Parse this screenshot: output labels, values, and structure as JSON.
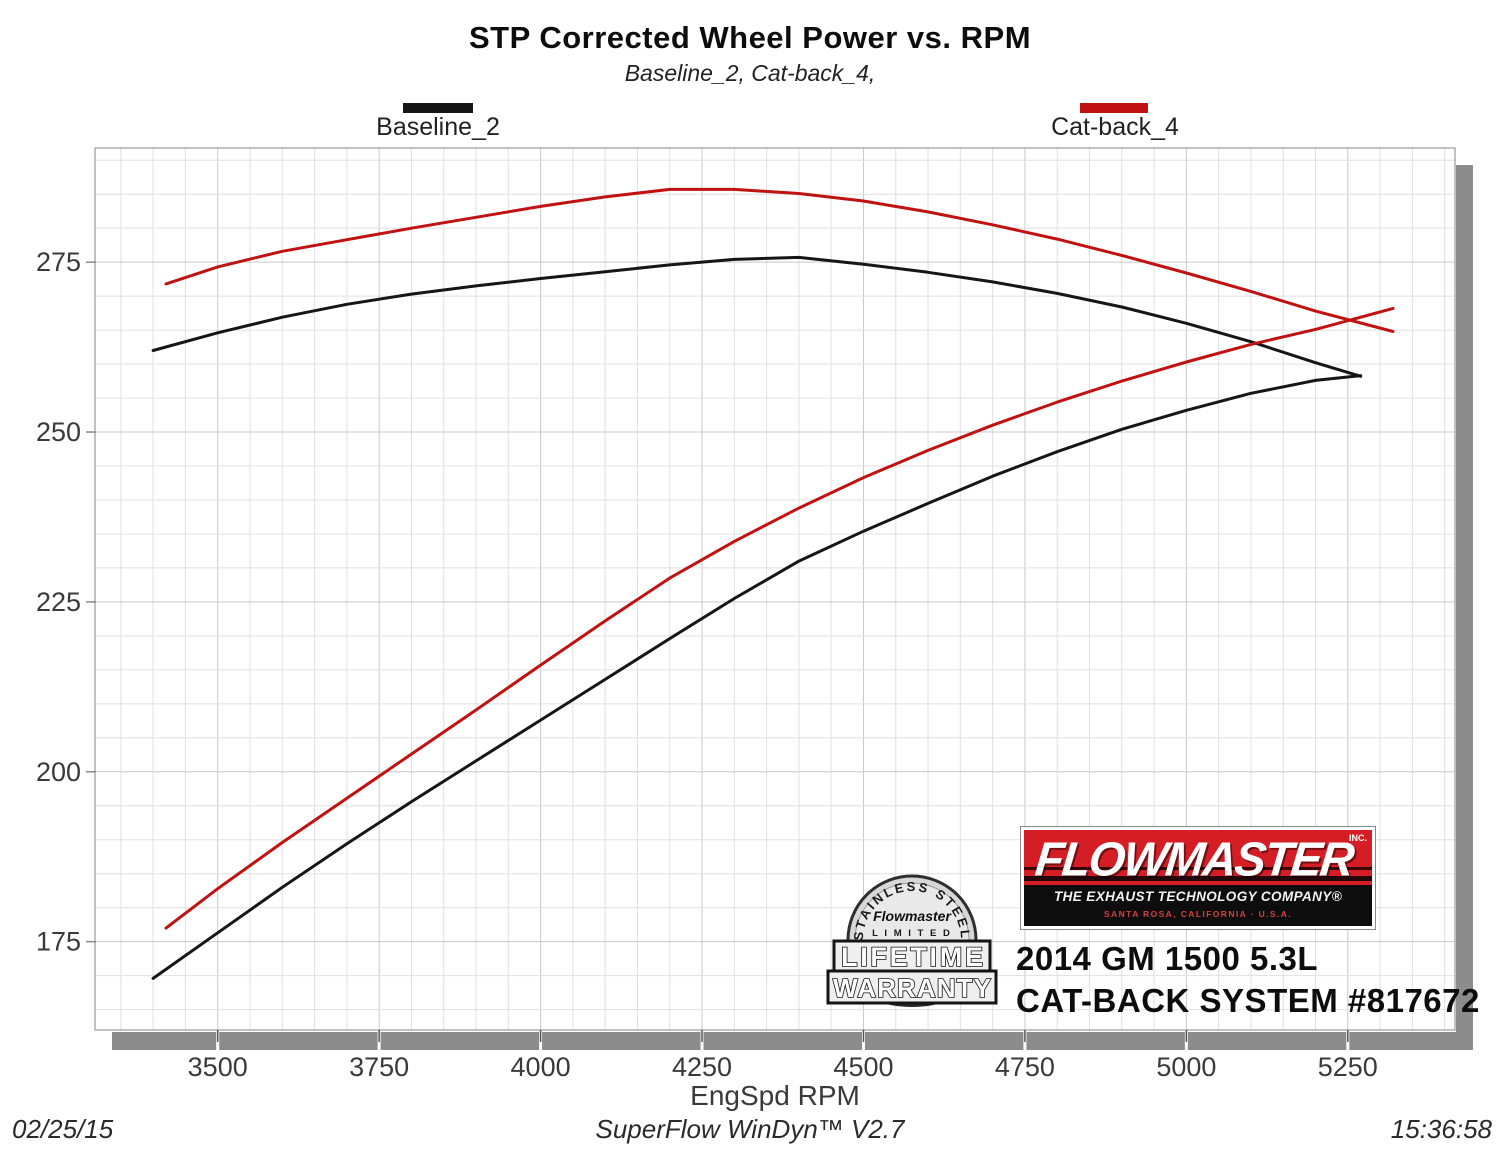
{
  "page": {
    "title": "STP Corrected Wheel Power vs. RPM",
    "subtitle": "Baseline_2, Cat-back_4,"
  },
  "chart_data": {
    "type": "line",
    "title": "STP Corrected Wheel Power vs. RPM",
    "subtitle": "Baseline_2, Cat-back_4,",
    "xlabel": "EngSpd RPM",
    "ylabel": "",
    "xlim": [
      3310,
      5416
    ],
    "ylim": [
      162,
      291.8
    ],
    "x_ticks": [
      3500,
      3750,
      4000,
      4250,
      4500,
      4750,
      5000,
      5250
    ],
    "y_ticks": [
      175,
      200,
      225,
      250,
      275
    ],
    "grid": {
      "on": true,
      "minor_x_step_rpm": 50,
      "minor_y_step": 5
    },
    "legend_position": "top",
    "series": [
      {
        "name": "Baseline_2",
        "color": "#161616",
        "x": [
          3400,
          3500,
          3600,
          3700,
          3800,
          3900,
          4000,
          4100,
          4200,
          4300,
          4400,
          4500,
          4600,
          4700,
          4800,
          4900,
          5000,
          5100,
          5200,
          5270
        ],
        "torque": [
          262.0,
          264.6,
          266.9,
          268.8,
          270.3,
          271.5,
          272.6,
          273.6,
          274.6,
          275.4,
          275.7,
          274.7,
          273.5,
          272.1,
          270.4,
          268.4,
          266.0,
          263.3,
          260.2,
          258.2
        ],
        "power": [
          169.6,
          176.3,
          183.0,
          189.4,
          195.6,
          201.6,
          207.6,
          213.6,
          219.6,
          225.5,
          231.0,
          235.4,
          239.5,
          243.5,
          247.1,
          250.4,
          253.2,
          255.7,
          257.6,
          258.3
        ]
      },
      {
        "name": "Cat-back_4",
        "color": "#c11212",
        "x": [
          3420,
          3500,
          3600,
          3700,
          3800,
          3900,
          4000,
          4100,
          4200,
          4300,
          4400,
          4500,
          4600,
          4700,
          4800,
          4900,
          5000,
          5100,
          5200,
          5320
        ],
        "torque": [
          271.8,
          274.3,
          276.6,
          278.3,
          280.0,
          281.6,
          283.2,
          284.6,
          285.7,
          285.7,
          285.1,
          284.0,
          282.4,
          280.5,
          278.4,
          276.0,
          273.4,
          270.7,
          267.8,
          264.8
        ],
        "power": [
          177.0,
          182.8,
          189.6,
          196.1,
          202.6,
          209.1,
          215.7,
          222.2,
          228.5,
          233.9,
          238.8,
          243.3,
          247.3,
          251.0,
          254.4,
          257.5,
          260.3,
          262.9,
          265.1,
          268.2
        ]
      }
    ]
  },
  "branding": {
    "name": "FLOWMASTER",
    "inc": "INC.",
    "tagline": "THE EXHAUST TECHNOLOGY COMPANY®",
    "location": "SANTA ROSA, CALIFORNIA  ·  U.S.A."
  },
  "badge": {
    "arc_text": "STAINLESS STEEL",
    "brand": "Flowmaster",
    "limited": "L I M I T E D",
    "line1": "LIFETIME",
    "line2": "WARRANTY"
  },
  "vehicle": {
    "line1": "2014 GM 1500 5.3L",
    "line2": "CAT-BACK SYSTEM #817672"
  },
  "footer": {
    "date": "02/25/15",
    "software": "SuperFlow WinDyn™ V2.7",
    "time": "15:36:58"
  }
}
